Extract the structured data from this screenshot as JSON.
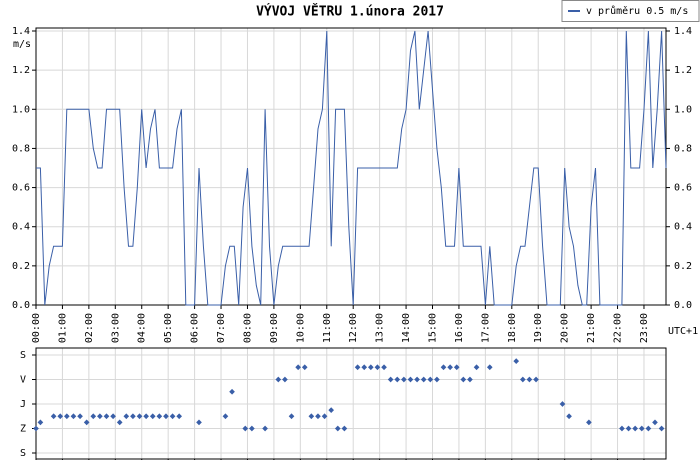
{
  "chart_data": [
    {
      "type": "line",
      "title": "VÝVOJ VĚTRU  1.února 2017",
      "y_label": "m/s",
      "x_label": "UTC+1",
      "legend": "upper right",
      "grid": true,
      "x": [
        "00:00",
        "00:10",
        "00:20",
        "00:30",
        "00:40",
        "00:50",
        "01:00",
        "01:10",
        "01:20",
        "01:30",
        "01:40",
        "01:50",
        "02:00",
        "02:10",
        "02:20",
        "02:30",
        "02:40",
        "02:50",
        "03:00",
        "03:10",
        "03:20",
        "03:30",
        "03:40",
        "03:50",
        "04:00",
        "04:10",
        "04:20",
        "04:30",
        "04:40",
        "04:50",
        "05:00",
        "05:10",
        "05:20",
        "05:30",
        "05:40",
        "05:50",
        "06:00",
        "06:10",
        "06:20",
        "06:30",
        "06:40",
        "06:50",
        "07:00",
        "07:10",
        "07:20",
        "07:30",
        "07:40",
        "07:50",
        "08:00",
        "08:10",
        "08:20",
        "08:30",
        "08:40",
        "08:50",
        "09:00",
        "09:10",
        "09:20",
        "09:30",
        "09:40",
        "09:50",
        "10:00",
        "10:10",
        "10:20",
        "10:30",
        "10:40",
        "10:50",
        "11:00",
        "11:10",
        "11:20",
        "11:30",
        "11:40",
        "11:50",
        "12:00",
        "12:10",
        "12:20",
        "12:30",
        "12:40",
        "12:50",
        "13:00",
        "13:10",
        "13:20",
        "13:30",
        "13:40",
        "13:50",
        "14:00",
        "14:10",
        "14:20",
        "14:30",
        "14:40",
        "14:50",
        "15:00",
        "15:10",
        "15:20",
        "15:30",
        "15:40",
        "15:50",
        "16:00",
        "16:10",
        "16:20",
        "16:30",
        "16:40",
        "16:50",
        "17:00",
        "17:10",
        "17:20",
        "17:30",
        "17:40",
        "17:50",
        "18:00",
        "18:10",
        "18:20",
        "18:30",
        "18:40",
        "18:50",
        "19:00",
        "19:10",
        "19:20",
        "19:30",
        "19:40",
        "19:50",
        "20:00",
        "20:10",
        "20:20",
        "20:30",
        "20:40",
        "20:50",
        "21:00",
        "21:10",
        "21:20",
        "21:30",
        "21:40",
        "21:50",
        "22:00",
        "22:10",
        "22:20",
        "22:30",
        "22:40",
        "22:50",
        "23:00",
        "23:10",
        "23:20",
        "23:30",
        "23:40",
        "23:50"
      ],
      "series": [
        {
          "name": "v průměru 0.5 m/s",
          "color": "#3a5fa8",
          "values": [
            0.7,
            0.7,
            0.0,
            0.2,
            0.3,
            0.3,
            0.3,
            1.0,
            1.0,
            1.0,
            1.0,
            1.0,
            1.0,
            0.8,
            0.7,
            0.7,
            1.0,
            1.0,
            1.0,
            1.0,
            0.6,
            0.3,
            0.3,
            0.6,
            1.0,
            0.7,
            0.9,
            1.0,
            0.7,
            0.7,
            0.7,
            0.7,
            0.9,
            1.0,
            0.0,
            0.0,
            0.0,
            0.7,
            0.3,
            0.0,
            0.0,
            0.0,
            0.0,
            0.2,
            0.3,
            0.3,
            0.0,
            0.5,
            0.7,
            0.3,
            0.1,
            0.0,
            1.0,
            0.3,
            0.0,
            0.2,
            0.3,
            0.3,
            0.3,
            0.3,
            0.3,
            0.3,
            0.3,
            0.6,
            0.9,
            1.0,
            1.4,
            0.3,
            1.0,
            1.0,
            1.0,
            0.4,
            0.0,
            0.7,
            0.7,
            0.7,
            0.7,
            0.7,
            0.7,
            0.7,
            0.7,
            0.7,
            0.7,
            0.9,
            1.0,
            1.3,
            1.4,
            1.0,
            1.2,
            1.4,
            1.1,
            0.8,
            0.6,
            0.3,
            0.3,
            0.3,
            0.7,
            0.3,
            0.3,
            0.3,
            0.3,
            0.3,
            0.0,
            0.3,
            0.0,
            0.0,
            0.0,
            0.0,
            0.0,
            0.2,
            0.3,
            0.3,
            0.5,
            0.7,
            0.7,
            0.3,
            0.0,
            0.0,
            0.0,
            0.0,
            0.7,
            0.4,
            0.3,
            0.1,
            0.0,
            0.0,
            0.5,
            0.7,
            0.0,
            0.0,
            0.0,
            0.0,
            0.0,
            0.0,
            1.4,
            0.7,
            0.7,
            0.7,
            1.0,
            1.4,
            0.7,
            1.0,
            1.4,
            0.7
          ]
        }
      ],
      "xlim": [
        "00:00",
        "23:50"
      ],
      "xticks": [
        "00:00",
        "01:00",
        "02:00",
        "03:00",
        "04:00",
        "05:00",
        "06:00",
        "07:00",
        "08:00",
        "09:00",
        "10:00",
        "11:00",
        "12:00",
        "13:00",
        "14:00",
        "15:00",
        "16:00",
        "17:00",
        "18:00",
        "19:00",
        "20:00",
        "21:00",
        "22:00",
        "23:00"
      ],
      "ylim": [
        0,
        1.4
      ],
      "yticks": [
        {
          "value": 0,
          "label": "0.0"
        },
        {
          "value": 0.2,
          "label": "0.2"
        },
        {
          "value": 0.4,
          "label": "0.4"
        },
        {
          "value": 0.6,
          "label": "0.6"
        },
        {
          "value": 0.8,
          "label": "0.8"
        },
        {
          "value": 1.0,
          "label": "1.0"
        },
        {
          "value": 1.2,
          "label": "1.2"
        },
        {
          "value": 1.4,
          "label": "1.4"
        }
      ]
    },
    {
      "type": "scatter",
      "grid": true,
      "color": "#3a5fa8",
      "x": [
        "00:00",
        "00:10",
        "00:40",
        "00:55",
        "01:10",
        "01:25",
        "01:40",
        "01:55",
        "02:10",
        "02:25",
        "02:40",
        "02:55",
        "03:10",
        "03:25",
        "03:40",
        "03:55",
        "04:10",
        "04:25",
        "04:40",
        "04:55",
        "05:10",
        "05:25",
        "06:10",
        "07:10",
        "07:25",
        "07:55",
        "08:10",
        "08:40",
        "09:10",
        "09:25",
        "09:40",
        "09:55",
        "10:10",
        "10:25",
        "10:40",
        "10:55",
        "11:10",
        "11:25",
        "11:40",
        "12:10",
        "12:25",
        "12:40",
        "12:55",
        "13:10",
        "13:25",
        "13:40",
        "13:55",
        "14:10",
        "14:25",
        "14:40",
        "14:55",
        "15:10",
        "15:25",
        "15:40",
        "15:55",
        "16:10",
        "16:25",
        "16:40",
        "17:10",
        "18:10",
        "18:25",
        "18:40",
        "18:55",
        "19:55",
        "20:10",
        "20:55",
        "22:10",
        "22:25",
        "22:40",
        "22:55",
        "23:10",
        "23:25",
        "23:40"
      ],
      "values": [
        270,
        247.5,
        225,
        225,
        225,
        225,
        225,
        247.5,
        225,
        225,
        225,
        225,
        247.5,
        225,
        225,
        225,
        225,
        225,
        225,
        225,
        225,
        225,
        247.5,
        225,
        135,
        270,
        270,
        270,
        90,
        90,
        225,
        45,
        45,
        225,
        225,
        225,
        202.5,
        270,
        270,
        45,
        45,
        45,
        45,
        45,
        90,
        90,
        90,
        90,
        90,
        90,
        90,
        90,
        45,
        45,
        45,
        90,
        90,
        45,
        45,
        22.5,
        90,
        90,
        90,
        180,
        225,
        247.5,
        270,
        270,
        270,
        270,
        270,
        247.5,
        270
      ],
      "xlim": [
        "00:00",
        "23:50"
      ],
      "ylim": [
        360,
        0
      ],
      "yticks": [
        {
          "value": 0,
          "label": "S"
        },
        {
          "value": 90,
          "label": "V"
        },
        {
          "value": 180,
          "label": "J"
        },
        {
          "value": 270,
          "label": "Z"
        },
        {
          "value": 360,
          "label": "S"
        }
      ]
    }
  ]
}
